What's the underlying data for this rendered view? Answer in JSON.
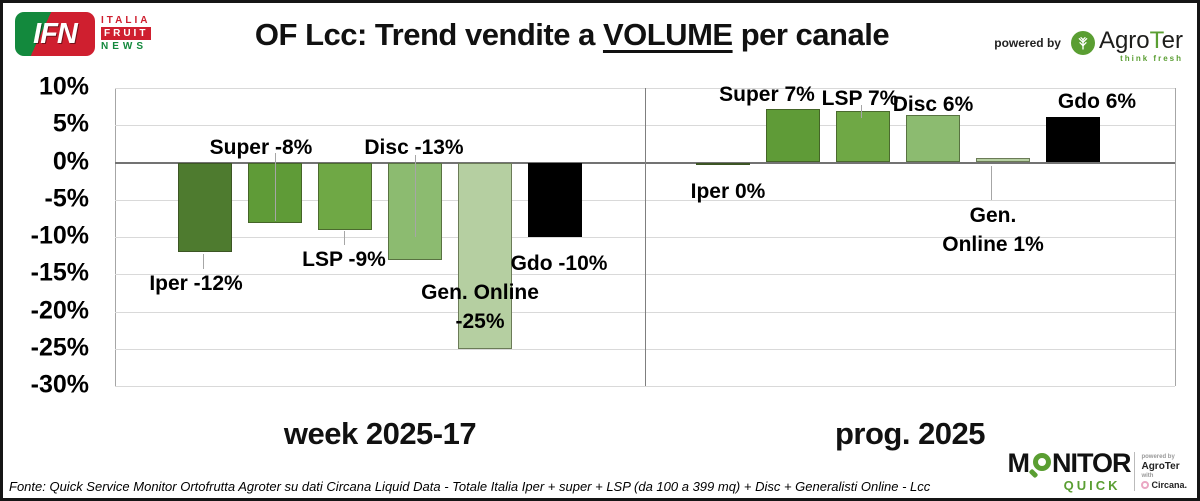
{
  "header": {
    "logo_ifn": {
      "monogram": "IFN",
      "italia": "ITALIA",
      "fruit": "FRUIT",
      "news": "NEWS"
    },
    "title_prefix": "OF Lcc: Trend vendite a ",
    "title_underline": "VOLUME",
    "title_suffix": " per canale",
    "powered_by": "powered by",
    "agroter": {
      "name_pre": "Agro",
      "name_t": "T",
      "name_post": "er",
      "tagline": "think fresh"
    }
  },
  "chart_data": {
    "type": "bar",
    "title": "OF Lcc: Trend vendite a VOLUME per canale",
    "xlabel": "",
    "ylabel": "",
    "ylim": [
      -30,
      10
    ],
    "grid": true,
    "legend": "none",
    "unit": "%",
    "y_ticks": [
      {
        "value": 10,
        "label": "10%"
      },
      {
        "value": 5,
        "label": "5%"
      },
      {
        "value": 0,
        "label": "0%"
      },
      {
        "value": -5,
        "label": "-5%"
      },
      {
        "value": -10,
        "label": "-10%"
      },
      {
        "value": -15,
        "label": "-15%"
      },
      {
        "value": -20,
        "label": "-20%"
      },
      {
        "value": -25,
        "label": "-25%"
      },
      {
        "value": -30,
        "label": "-30%"
      }
    ],
    "groups": [
      {
        "label": "week 2025-17",
        "bars": [
          {
            "name": "Iper",
            "value": -12,
            "draw_value": -12,
            "label_lines": [
              "Iper -12%"
            ],
            "color": "#4E7B2F"
          },
          {
            "name": "Super",
            "value": -8,
            "draw_value": -8.1,
            "label_lines": [
              "Super -8%"
            ],
            "color": "#5F9B37"
          },
          {
            "name": "LSP",
            "value": -9,
            "draw_value": -9,
            "label_lines": [
              "LSP -9%"
            ],
            "color": "#6FA845"
          },
          {
            "name": "Disc",
            "value": -13,
            "draw_value": -13.1,
            "label_lines": [
              "Disc -13%"
            ],
            "color": "#8CBB70"
          },
          {
            "name": "Gen. Online",
            "value": -25,
            "draw_value": -25,
            "label_lines": [
              "Gen. Online",
              "-25%"
            ],
            "color": "#B5CFA1"
          },
          {
            "name": "Gdo",
            "value": -10,
            "draw_value": -10,
            "label_lines": [
              "Gdo -10%"
            ],
            "color": "#000000"
          }
        ]
      },
      {
        "label": "prog. 2025",
        "bars": [
          {
            "name": "Iper",
            "value": 0,
            "draw_value": -0.4,
            "label_lines": [
              "Iper 0%"
            ],
            "color": "#4E7B2F"
          },
          {
            "name": "Super",
            "value": 7,
            "draw_value": 7.2,
            "label_lines": [
              "Super 7%"
            ],
            "color": "#5F9B37"
          },
          {
            "name": "LSP",
            "value": 7,
            "draw_value": 6.9,
            "label_lines": [
              "LSP 7%"
            ],
            "color": "#6FA845"
          },
          {
            "name": "Disc",
            "value": 6,
            "draw_value": 6.4,
            "label_lines": [
              "Disc 6%"
            ],
            "color": "#8CBB70"
          },
          {
            "name": "Gen. Online",
            "value": 1,
            "draw_value": 0.6,
            "label_lines": [
              "Gen.",
              "Online 1%"
            ],
            "color": "#B5CFA1"
          },
          {
            "name": "Gdo",
            "value": 6,
            "draw_value": 6.1,
            "label_lines": [
              "Gdo 6%"
            ],
            "color": "#000000"
          }
        ]
      }
    ]
  },
  "footer": {
    "source": "Fonte: Quick Service Monitor Ortofrutta Agroter su dati Circana Liquid Data - Totale Italia Iper + super + LSP (da 100 a 399 mq) + Disc + Generalisti Online - Lcc",
    "monitor_logo": {
      "m": "M",
      "nitor": "NITOR",
      "quick": "QUICK",
      "powered_by": "powered by",
      "agroter": "AgroTer",
      "with": "with",
      "circana": "Circana."
    }
  }
}
